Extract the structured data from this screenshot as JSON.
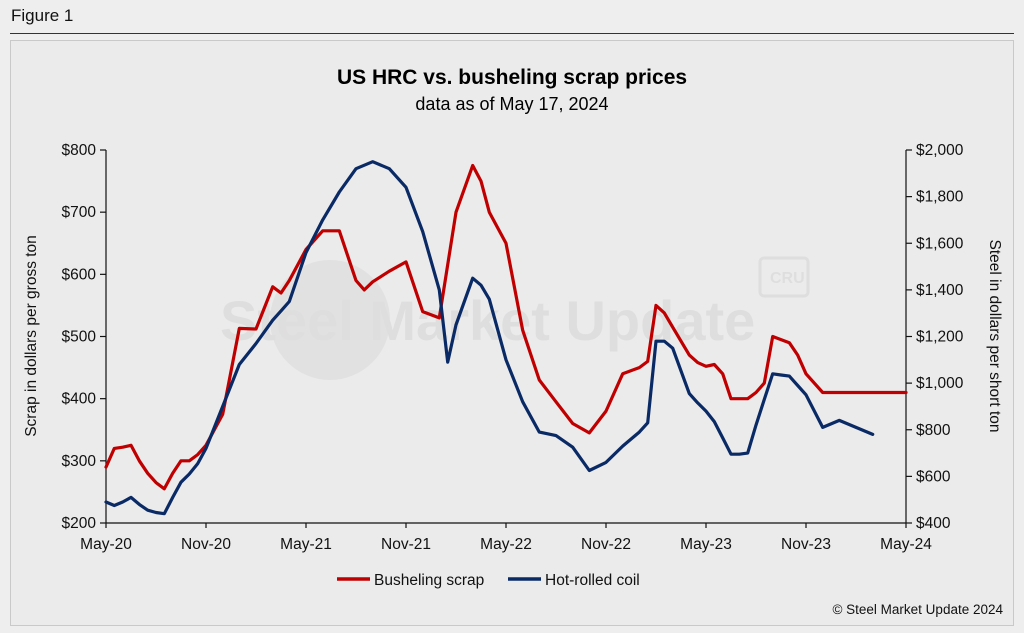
{
  "figure_label": "Figure 1",
  "credit": "© Steel Market Update 2024",
  "watermark": {
    "brand": "Steel Market Update",
    "badge": "CRU"
  },
  "colors": {
    "scrap": "#c00000",
    "hrc": "#0a2a66",
    "background": "#ebebeb"
  },
  "chart_data": {
    "type": "line",
    "title": "US HRC vs. busheling scrap prices",
    "subtitle": "data as of May 17, 2024",
    "ylabel_left": "Scrap in dollars per gross ton",
    "ylabel_right": "Steel in dollars per short ton",
    "ylim_left": [
      200,
      800
    ],
    "ylim_right": [
      400,
      2000
    ],
    "yticks_left": [
      "$200",
      "$300",
      "$400",
      "$500",
      "$600",
      "$700",
      "$800"
    ],
    "yticks_right": [
      "$400",
      "$600",
      "$800",
      "$1,000",
      "$1,200",
      "$1,400",
      "$1,600",
      "$1,800",
      "$2,000"
    ],
    "xticks": [
      "May-20",
      "Nov-20",
      "May-21",
      "Nov-21",
      "May-22",
      "Nov-22",
      "May-23",
      "Nov-23",
      "May-24"
    ],
    "grid": false,
    "legend_position": "bottom-center",
    "series": [
      {
        "name": "Busheling scrap",
        "axis": "left",
        "points": [
          [
            0,
            290
          ],
          [
            0.5,
            320
          ],
          [
            1,
            322
          ],
          [
            1.5,
            325
          ],
          [
            2,
            300
          ],
          [
            2.5,
            280
          ],
          [
            3,
            265
          ],
          [
            3.5,
            255
          ],
          [
            4,
            280
          ],
          [
            4.5,
            300
          ],
          [
            5,
            300
          ],
          [
            5.5,
            310
          ],
          [
            6,
            325
          ],
          [
            7,
            375
          ],
          [
            8,
            513
          ],
          [
            9,
            512
          ],
          [
            10,
            580
          ],
          [
            10.5,
            570
          ],
          [
            11,
            590
          ],
          [
            12,
            640
          ],
          [
            13,
            670
          ],
          [
            14,
            670
          ],
          [
            15,
            590
          ],
          [
            15.5,
            575
          ],
          [
            16,
            588
          ],
          [
            17,
            605
          ],
          [
            18,
            620
          ],
          [
            19,
            540
          ],
          [
            20,
            530
          ],
          [
            21,
            700
          ],
          [
            22,
            775
          ],
          [
            22.5,
            750
          ],
          [
            23,
            700
          ],
          [
            24,
            650
          ],
          [
            25,
            510
          ],
          [
            26,
            430
          ],
          [
            27,
            395
          ],
          [
            28,
            360
          ],
          [
            29,
            345
          ],
          [
            30,
            380
          ],
          [
            31,
            440
          ],
          [
            32,
            450
          ],
          [
            32.5,
            460
          ],
          [
            33,
            550
          ],
          [
            33.5,
            538
          ],
          [
            34,
            515
          ],
          [
            35,
            470
          ],
          [
            35.5,
            458
          ],
          [
            36,
            452
          ],
          [
            36.5,
            455
          ],
          [
            37,
            440
          ],
          [
            37.5,
            400
          ],
          [
            38,
            400
          ],
          [
            38.5,
            400
          ],
          [
            39,
            410
          ],
          [
            39.5,
            425
          ],
          [
            40,
            500
          ],
          [
            40.5,
            495
          ],
          [
            41,
            490
          ],
          [
            41.5,
            470
          ],
          [
            42,
            440
          ],
          [
            43,
            410
          ],
          [
            44,
            410
          ],
          [
            48,
            410
          ]
        ]
      },
      {
        "name": "Hot-rolled coil",
        "axis": "right",
        "points": [
          [
            0,
            490
          ],
          [
            0.5,
            475
          ],
          [
            1,
            490
          ],
          [
            1.5,
            510
          ],
          [
            2,
            480
          ],
          [
            2.5,
            455
          ],
          [
            3,
            445
          ],
          [
            3.5,
            440
          ],
          [
            4,
            510
          ],
          [
            4.5,
            575
          ],
          [
            5,
            610
          ],
          [
            5.5,
            655
          ],
          [
            6,
            720
          ],
          [
            7,
            900
          ],
          [
            8,
            1080
          ],
          [
            9,
            1170
          ],
          [
            10,
            1270
          ],
          [
            10.5,
            1310
          ],
          [
            11,
            1350
          ],
          [
            12,
            1560
          ],
          [
            13,
            1700
          ],
          [
            14,
            1820
          ],
          [
            15,
            1920
          ],
          [
            16,
            1950
          ],
          [
            17,
            1920
          ],
          [
            18,
            1840
          ],
          [
            19,
            1650
          ],
          [
            20,
            1400
          ],
          [
            20.5,
            1090
          ],
          [
            21,
            1250
          ],
          [
            22,
            1450
          ],
          [
            22.5,
            1420
          ],
          [
            23,
            1360
          ],
          [
            24,
            1100
          ],
          [
            25,
            920
          ],
          [
            26,
            790
          ],
          [
            27,
            775
          ],
          [
            28,
            725
          ],
          [
            29,
            625
          ],
          [
            30,
            660
          ],
          [
            31,
            730
          ],
          [
            32,
            790
          ],
          [
            32.5,
            830
          ],
          [
            33,
            1180
          ],
          [
            33.5,
            1180
          ],
          [
            34,
            1150
          ],
          [
            35,
            955
          ],
          [
            35.5,
            915
          ],
          [
            36,
            880
          ],
          [
            36.5,
            835
          ],
          [
            37,
            765
          ],
          [
            37.5,
            695
          ],
          [
            38,
            695
          ],
          [
            38.5,
            700
          ],
          [
            39,
            820
          ],
          [
            39.5,
            930
          ],
          [
            40,
            1040
          ],
          [
            40.5,
            1035
          ],
          [
            41,
            1030
          ],
          [
            41.5,
            990
          ],
          [
            42,
            950
          ],
          [
            43,
            810
          ],
          [
            44,
            840
          ],
          [
            45,
            810
          ],
          [
            46,
            780
          ]
        ]
      }
    ]
  }
}
